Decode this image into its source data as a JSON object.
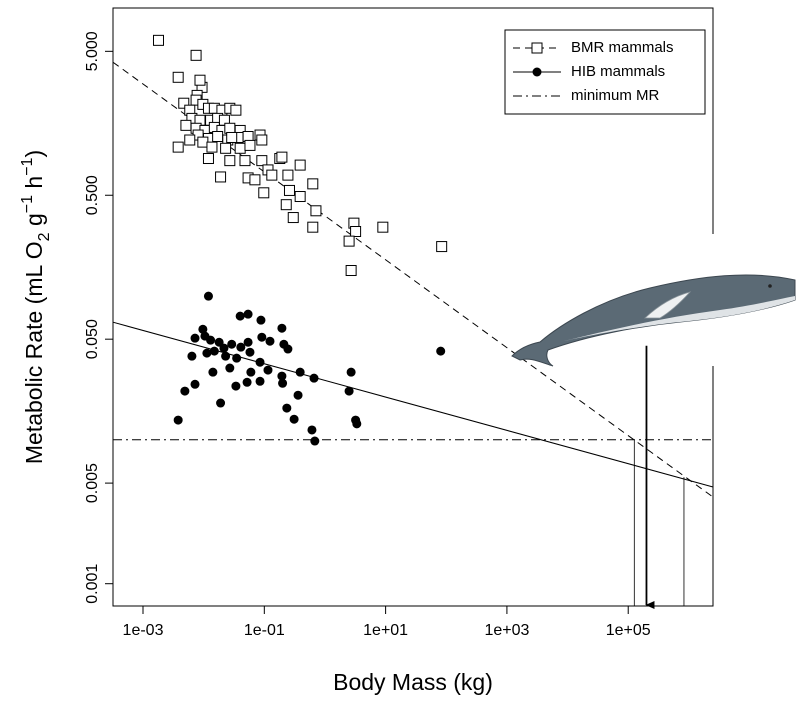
{
  "chart_data": {
    "type": "scatter",
    "x_label": "Body Mass (kg)",
    "y_label": [
      {
        "text": "Metabolic Rate (mL O"
      },
      {
        "text": "2",
        "pos": "sub"
      },
      {
        "text": " g"
      },
      {
        "text": "−1",
        "pos": "sup"
      },
      {
        "text": " h"
      },
      {
        "text": "−1",
        "pos": "sup"
      },
      {
        "text": ")"
      }
    ],
    "log_x": true,
    "log_y": true,
    "xlim": [
      0.00032,
      2500000
    ],
    "ylim": [
      0.0007,
      10
    ],
    "xticks": [
      {
        "value": 0.001,
        "label": "1e-03"
      },
      {
        "value": 0.1,
        "label": "1e-01"
      },
      {
        "value": 10,
        "label": "1e+01"
      },
      {
        "value": 1000,
        "label": "1e+03"
      },
      {
        "value": 100000,
        "label": "1e+05"
      }
    ],
    "yticks": [
      {
        "value": 5,
        "label": "5.000"
      },
      {
        "value": 0.5,
        "label": "0.500"
      },
      {
        "value": 0.05,
        "label": "0.050"
      },
      {
        "value": 0.005,
        "label": "0.005"
      },
      {
        "value": 0.001,
        "label": "0.001"
      }
    ],
    "legend": "top-right",
    "series": [
      {
        "name": "BMR mammals",
        "marker": "square",
        "line_style": "dashed",
        "color": "#000000",
        "x": [
          0.0018,
          0.0075,
          0.0038,
          0.0094,
          0.0078,
          0.0047,
          0.0075,
          0.0097,
          0.0059,
          0.012,
          0.015,
          0.02,
          0.027,
          0.034,
          0.0064,
          0.0087,
          0.013,
          0.017,
          0.022,
          0.0051,
          0.0075,
          0.0105,
          0.015,
          0.02,
          0.027,
          0.04,
          0.0081,
          0.012,
          0.017,
          0.025,
          0.037,
          0.054,
          0.085,
          0.0059,
          0.0097,
          0.0137,
          0.023,
          0.04,
          0.058,
          0.091,
          0.0038,
          0.012,
          0.027,
          0.048,
          0.091,
          0.18,
          0.39,
          0.019,
          0.054,
          0.07,
          0.115,
          0.133,
          0.245,
          0.63,
          0.26,
          0.39,
          0.098,
          0.23,
          0.71,
          0.3,
          0.63,
          3.0,
          3.2,
          9.0,
          2.5,
          84,
          2.7,
          0.195,
          0.029,
          0.0087
        ],
        "values": [
          5.96,
          4.69,
          3.3,
          2.81,
          2.47,
          2.18,
          2.29,
          2.14,
          1.95,
          2.01,
          2.01,
          1.95,
          2.01,
          1.95,
          1.71,
          1.66,
          1.66,
          1.71,
          1.66,
          1.53,
          1.46,
          1.41,
          1.48,
          1.41,
          1.46,
          1.41,
          1.31,
          1.24,
          1.28,
          1.21,
          1.26,
          1.28,
          1.31,
          1.21,
          1.17,
          1.08,
          1.06,
          1.06,
          1.11,
          1.21,
          1.08,
          0.9,
          0.87,
          0.87,
          0.87,
          0.9,
          0.81,
          0.67,
          0.66,
          0.64,
          0.75,
          0.69,
          0.69,
          0.6,
          0.54,
          0.49,
          0.52,
          0.43,
          0.39,
          0.35,
          0.3,
          0.32,
          0.28,
          0.3,
          0.24,
          0.22,
          0.15,
          0.92,
          1.26,
          3.15
        ],
        "fit": {
          "x": [
            0.00032,
            2500000
          ],
          "values": [
            4.2,
            0.004
          ]
        }
      },
      {
        "name": "HIB mammals",
        "marker": "dot",
        "line_style": "solid",
        "color": "#000000",
        "x": [
          0.012,
          0.0097,
          0.0105,
          0.0072,
          0.013,
          0.0064,
          0.0113,
          0.018,
          0.0216,
          0.015,
          0.029,
          0.041,
          0.054,
          0.023,
          0.035,
          0.058,
          0.091,
          0.088,
          0.054,
          0.195,
          0.21,
          0.245,
          0.124,
          0.04,
          0.0142,
          0.027,
          0.06,
          0.0072,
          0.0049,
          0.034,
          0.085,
          0.052,
          0.195,
          0.39,
          0.66,
          0.2,
          0.36,
          0.019,
          0.235,
          0.31,
          0.0038,
          0.61,
          0.68,
          3.2,
          3.35,
          2.5,
          2.7,
          81,
          0.115,
          0.085
        ],
        "values": [
          0.0995,
          0.0586,
          0.0525,
          0.0508,
          0.0492,
          0.0381,
          0.04,
          0.0476,
          0.0433,
          0.0413,
          0.0461,
          0.044,
          0.0476,
          0.0381,
          0.0369,
          0.0406,
          0.0516,
          0.0678,
          0.0746,
          0.0596,
          0.0461,
          0.0427,
          0.0484,
          0.0723,
          0.0295,
          0.0315,
          0.0295,
          0.0243,
          0.0218,
          0.0236,
          0.0255,
          0.0251,
          0.0277,
          0.0295,
          0.0268,
          0.0247,
          0.0204,
          0.018,
          0.0166,
          0.0139,
          0.0137,
          0.0117,
          0.0098,
          0.0137,
          0.0129,
          0.0218,
          0.0295,
          0.0413,
          0.0305,
          0.0346
        ],
        "fit": {
          "x": [
            0.00032,
            2500000
          ],
          "values": [
            0.0656,
            0.0047
          ]
        }
      }
    ],
    "hlines": [
      {
        "name": "minimum MR",
        "line_style": "dashdot",
        "value": 0.01
      }
    ],
    "vlines": [
      {
        "x": 126000,
        "top": 0.01
      },
      {
        "x": 830000,
        "top": 0.0055
      }
    ],
    "arrow": {
      "x": 200000,
      "from": 0.045,
      "to": 0.0007
    }
  }
}
